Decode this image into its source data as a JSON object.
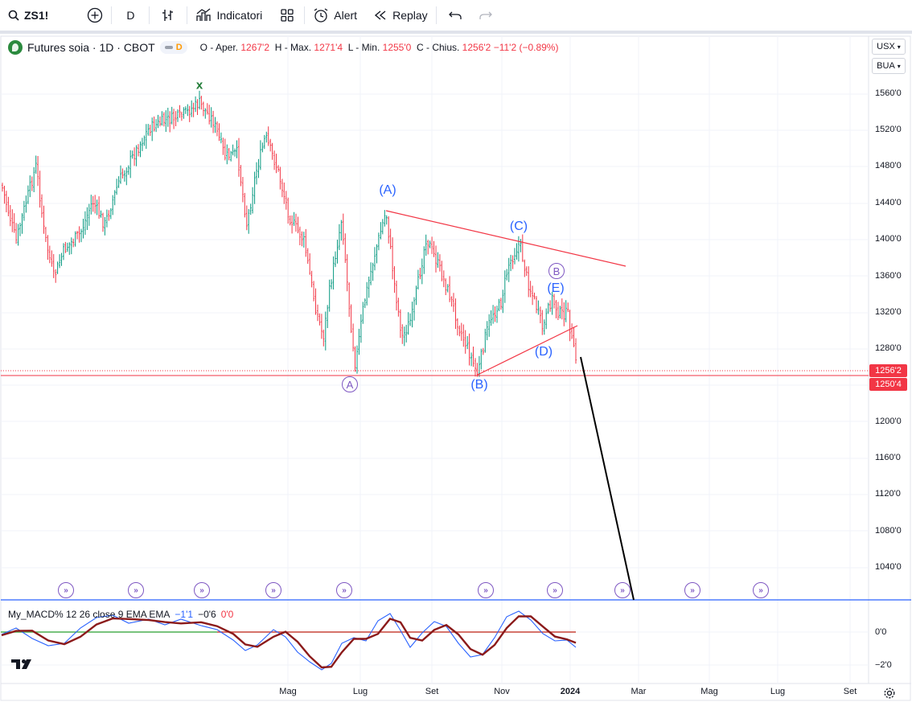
{
  "toolbar": {
    "symbol": "ZS1!",
    "interval": "D",
    "indicators_label": "Indicatori",
    "alert_label": "Alert",
    "replay_label": "Replay"
  },
  "legend": {
    "title": "Futures soia · 1D · CBOT",
    "pill_label": "D",
    "open_label": "O - Aper.",
    "open": "1267'2",
    "high_label": "H - Max.",
    "high": "1271'4",
    "low_label": "L - Min.",
    "low": "1255'0",
    "close_label": "C - Chius.",
    "close": "1256'2",
    "change": "−11'2 (−0.89%)"
  },
  "units": {
    "currency": "USX",
    "unit": "BUA"
  },
  "price_axis": [
    "1560'0",
    "1520'0",
    "1480'0",
    "1440'0",
    "1400'0",
    "1360'0",
    "1320'0",
    "1280'0",
    "1200'0",
    "1160'0",
    "1120'0",
    "1080'0",
    "1040'0"
  ],
  "price_tags": {
    "last": "1256'2",
    "line": "1250'4"
  },
  "time_axis": [
    "Mag",
    "Lug",
    "Set",
    "Nov",
    "2024",
    "Mar",
    "Mag",
    "Lug",
    "Set"
  ],
  "waves": {
    "x": "x",
    "A_big": "(A)",
    "B_big": "(B)",
    "C_big": "(C)",
    "D_big": "(D)",
    "E_big": "(E)",
    "A_circle": "A",
    "B_circle": "B"
  },
  "macd": {
    "name": "My_MACD% 12 26 close 9 EMA EMA",
    "v1": "−1'1",
    "v2": "−0'6",
    "v3": "0'0",
    "axis": [
      "0'0",
      "−2'0"
    ]
  },
  "colors": {
    "up": "#089981",
    "down": "#f23645",
    "trend": "#f23645",
    "wave_blue": "#2962ff",
    "wave_purple": "#7e57c2",
    "macd_line": "#2962ff",
    "signal_line": "#8b1a1a"
  }
}
